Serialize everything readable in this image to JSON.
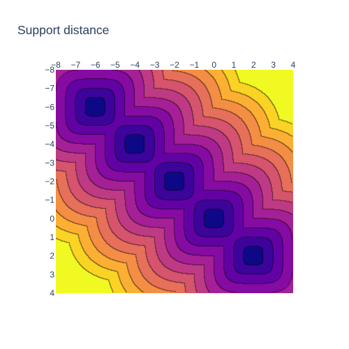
{
  "title": "Support distance",
  "chart_data": {
    "type": "contour",
    "title": "Support distance",
    "xlabel": "",
    "ylabel": "",
    "x_axis_side": "top",
    "y_axis_reversed": true,
    "xlim": [
      -8,
      4
    ],
    "ylim": [
      -8,
      4
    ],
    "x_ticks": [
      "−8",
      "−7",
      "−6",
      "−5",
      "−4",
      "−3",
      "−2",
      "−1",
      "0",
      "1",
      "2",
      "3",
      "4"
    ],
    "y_ticks": [
      "−8",
      "−7",
      "−6",
      "−5",
      "−4",
      "−3",
      "−2",
      "−1",
      "0",
      "1",
      "2",
      "3",
      "4"
    ],
    "x_tick_values": [
      -8,
      -7,
      -6,
      -5,
      -4,
      -3,
      -2,
      -1,
      0,
      1,
      2,
      3,
      4
    ],
    "y_tick_values": [
      -8,
      -7,
      -6,
      -5,
      -4,
      -3,
      -2,
      -1,
      0,
      1,
      2,
      3,
      4
    ],
    "support_points": [
      [
        -6,
        -6
      ],
      [
        -4,
        -4
      ],
      [
        -2,
        -2
      ],
      [
        0,
        0
      ],
      [
        2,
        2
      ]
    ],
    "field": "distance to nearest support point (superellipse norm)",
    "contour_levels": 12,
    "z_range": [
      0,
      6
    ],
    "colorscale": [
      "#0d0887",
      "#46039f",
      "#7201a8",
      "#9c179e",
      "#bd3786",
      "#d8576b",
      "#ed7953",
      "#fb9f3a",
      "#fdca26",
      "#f0f921"
    ],
    "grid": false,
    "legend": "none"
  }
}
